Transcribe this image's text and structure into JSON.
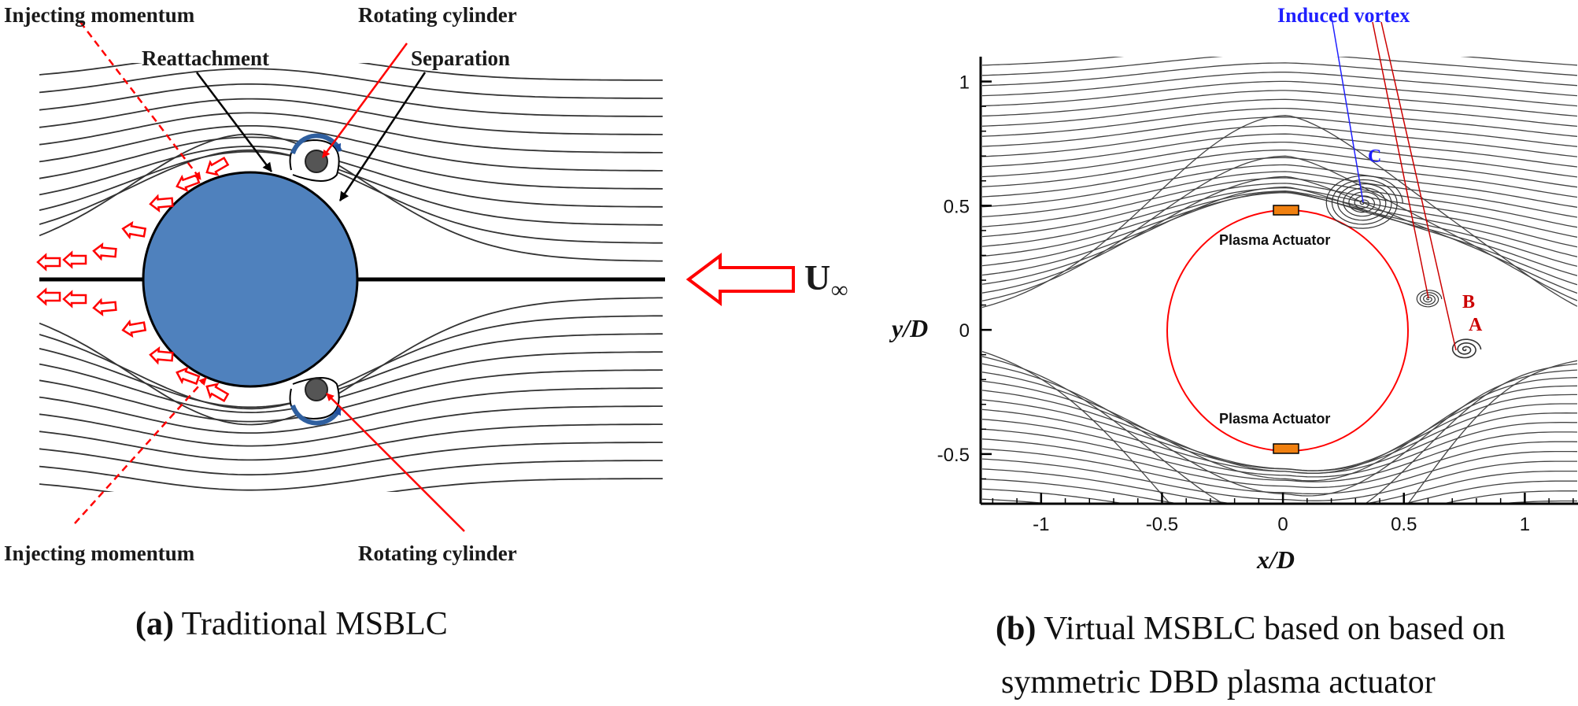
{
  "panel_a": {
    "labels": {
      "injecting_top": "Injecting momentum",
      "rotating_top": "Rotating cylinder",
      "reattachment": "Reattachment",
      "separation": "Separation",
      "injecting_bottom": "Injecting momentum",
      "rotating_bottom": "Rotating cylinder",
      "freestream_symbol": "U",
      "freestream_sub": "∞"
    },
    "caption_letter": "(a)",
    "caption_text": " Traditional MSBLC",
    "colors": {
      "cylinder": "#4f81bd",
      "arrow": "#ff0000",
      "rotor": "#2f5f9f"
    }
  },
  "panel_b": {
    "axes": {
      "xlabel": "x/D",
      "ylabel": "y/D",
      "xticks": [
        "-1",
        "-0.5",
        "0",
        "0.5",
        "1"
      ],
      "yticks": [
        "1",
        "0.5",
        "0",
        "-0.5"
      ],
      "xlim": [
        -1.25,
        1.22
      ],
      "ylim": [
        -0.7,
        1.1
      ]
    },
    "annotations": {
      "induced_vortex": "Induced vortex",
      "C": "C",
      "B": "B",
      "A": "A",
      "actuator_top": "Plasma Actuator",
      "actuator_bottom": "Plasma Actuator"
    },
    "caption_letter": "(b)",
    "caption_line1": " Virtual MSBLC based on based on",
    "caption_line2": "symmetric DBD plasma actuator",
    "colors": {
      "circle": "#ff0000",
      "actuator": "#f08010",
      "vortex_label": "#2020ff",
      "point_label": "#cc0000"
    }
  }
}
